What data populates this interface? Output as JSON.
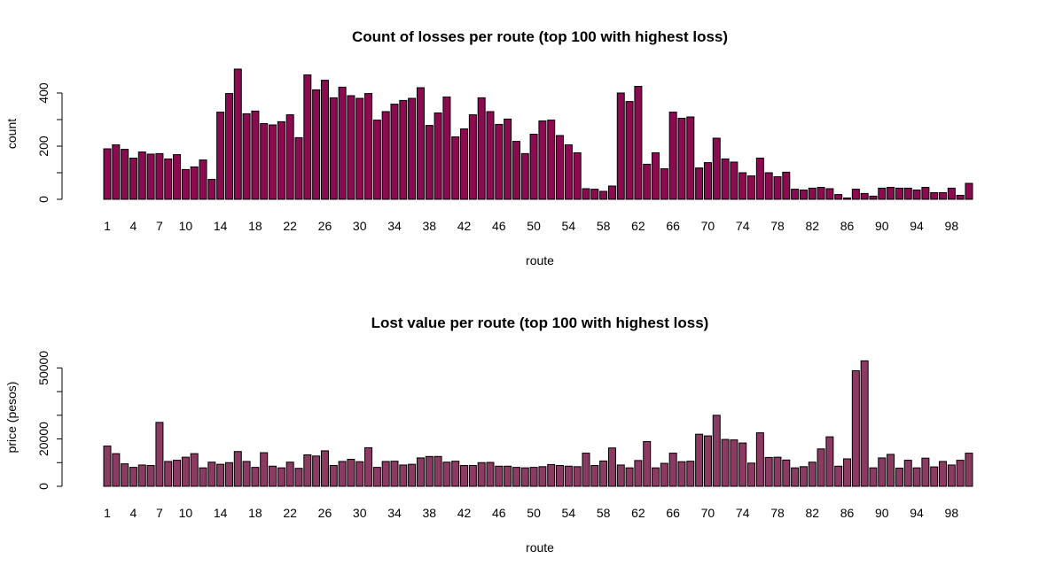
{
  "chart_data": [
    {
      "type": "bar",
      "title": "Count of losses per route (top 100 with highest loss)",
      "xlabel": "route",
      "ylabel": "count",
      "ylim": [
        0,
        490
      ],
      "yticks": [
        0,
        200,
        400
      ],
      "yticks_minor": [
        100,
        300
      ],
      "categories": [
        "1",
        "2",
        "3",
        "4",
        "5",
        "6",
        "7",
        "8",
        "9",
        "10",
        "11",
        "12",
        "13",
        "14",
        "15",
        "16",
        "17",
        "18",
        "19",
        "20",
        "21",
        "22",
        "23",
        "24",
        "25",
        "26",
        "27",
        "28",
        "29",
        "30",
        "31",
        "32",
        "33",
        "34",
        "35",
        "36",
        "37",
        "38",
        "39",
        "40",
        "41",
        "42",
        "43",
        "44",
        "45",
        "46",
        "47",
        "48",
        "49",
        "50",
        "51",
        "52",
        "53",
        "54",
        "55",
        "56",
        "57",
        "58",
        "59",
        "60",
        "61",
        "62",
        "63",
        "64",
        "65",
        "66",
        "67",
        "68",
        "69",
        "70",
        "71",
        "72",
        "73",
        "74",
        "75",
        "76",
        "77",
        "78",
        "79",
        "80",
        "81",
        "82",
        "83",
        "84",
        "85",
        "86",
        "87",
        "88",
        "89",
        "90",
        "91",
        "92",
        "93",
        "94",
        "95",
        "96",
        "97",
        "98",
        "99",
        "100"
      ],
      "visible_category_labels": [
        "1",
        "4",
        "7",
        "10",
        "14",
        "18",
        "22",
        "26",
        "30",
        "34",
        "38",
        "42",
        "46",
        "50",
        "54",
        "58",
        "62",
        "66",
        "70",
        "74",
        "78",
        "82",
        "86",
        "90",
        "94",
        "98"
      ],
      "color": "#8B0A50",
      "values": [
        190,
        205,
        188,
        155,
        178,
        170,
        172,
        152,
        168,
        112,
        122,
        148,
        75,
        328,
        398,
        490,
        322,
        332,
        285,
        280,
        292,
        318,
        232,
        468,
        412,
        448,
        382,
        422,
        390,
        380,
        398,
        298,
        330,
        358,
        372,
        380,
        420,
        278,
        325,
        385,
        235,
        265,
        318,
        382,
        330,
        282,
        302,
        218,
        172,
        245,
        295,
        298,
        240,
        205,
        175,
        40,
        38,
        30,
        50,
        400,
        368,
        425,
        132,
        175,
        115,
        328,
        305,
        310,
        118,
        138,
        230,
        152,
        140,
        100,
        88,
        155,
        100,
        85,
        102,
        38,
        35,
        42,
        45,
        40,
        18,
        5,
        38,
        22,
        12,
        42,
        45,
        42,
        42,
        35,
        45,
        25,
        25,
        42,
        15,
        60
      ]
    },
    {
      "type": "bar",
      "title": "Lost value per route (top 100 with highest loss)",
      "xlabel": "route",
      "ylabel": "price (pesos)",
      "ylim": [
        0,
        55000
      ],
      "yticks": [
        0,
        20000,
        50000
      ],
      "yticks_minor": [
        10000,
        30000,
        40000
      ],
      "categories": [
        "1",
        "2",
        "3",
        "4",
        "5",
        "6",
        "7",
        "8",
        "9",
        "10",
        "11",
        "12",
        "13",
        "14",
        "15",
        "16",
        "17",
        "18",
        "19",
        "20",
        "21",
        "22",
        "23",
        "24",
        "25",
        "26",
        "27",
        "28",
        "29",
        "30",
        "31",
        "32",
        "33",
        "34",
        "35",
        "36",
        "37",
        "38",
        "39",
        "40",
        "41",
        "42",
        "43",
        "44",
        "45",
        "46",
        "47",
        "48",
        "49",
        "50",
        "51",
        "52",
        "53",
        "54",
        "55",
        "56",
        "57",
        "58",
        "59",
        "60",
        "61",
        "62",
        "63",
        "64",
        "65",
        "66",
        "67",
        "68",
        "69",
        "70",
        "71",
        "72",
        "73",
        "74",
        "75",
        "76",
        "77",
        "78",
        "79",
        "80",
        "81",
        "82",
        "83",
        "84",
        "85",
        "86",
        "87",
        "88",
        "89",
        "90",
        "91",
        "92",
        "93",
        "94",
        "95",
        "96",
        "97",
        "98",
        "99",
        "100"
      ],
      "visible_category_labels": [
        "1",
        "4",
        "7",
        "10",
        "14",
        "18",
        "22",
        "26",
        "30",
        "34",
        "38",
        "42",
        "46",
        "50",
        "54",
        "58",
        "62",
        "66",
        "70",
        "74",
        "78",
        "82",
        "86",
        "90",
        "94",
        "98"
      ],
      "color": "#8B3A62",
      "values": [
        17000,
        13800,
        9500,
        8000,
        9000,
        8800,
        27000,
        10500,
        11000,
        12300,
        13800,
        7800,
        10200,
        9300,
        10000,
        14700,
        10500,
        8000,
        14200,
        8500,
        7800,
        10200,
        7600,
        13300,
        12800,
        15000,
        8800,
        10500,
        11400,
        10400,
        16300,
        8000,
        10500,
        10600,
        9000,
        9300,
        12000,
        12600,
        12600,
        10200,
        10600,
        8800,
        8800,
        10000,
        10100,
        8500,
        8500,
        8000,
        7800,
        8000,
        8300,
        9200,
        8800,
        8500,
        8300,
        14000,
        8800,
        10700,
        16200,
        9000,
        7800,
        10900,
        18900,
        7800,
        9700,
        14000,
        10400,
        10600,
        22000,
        21300,
        30000,
        19800,
        19600,
        18300,
        9800,
        22600,
        12200,
        12300,
        11100,
        7800,
        8300,
        10200,
        15800,
        20900,
        8500,
        11600,
        48800,
        53000,
        7800,
        12000,
        13500,
        7700,
        11000,
        7800,
        11900,
        8200,
        10500,
        9000,
        11000,
        14000
      ]
    }
  ]
}
